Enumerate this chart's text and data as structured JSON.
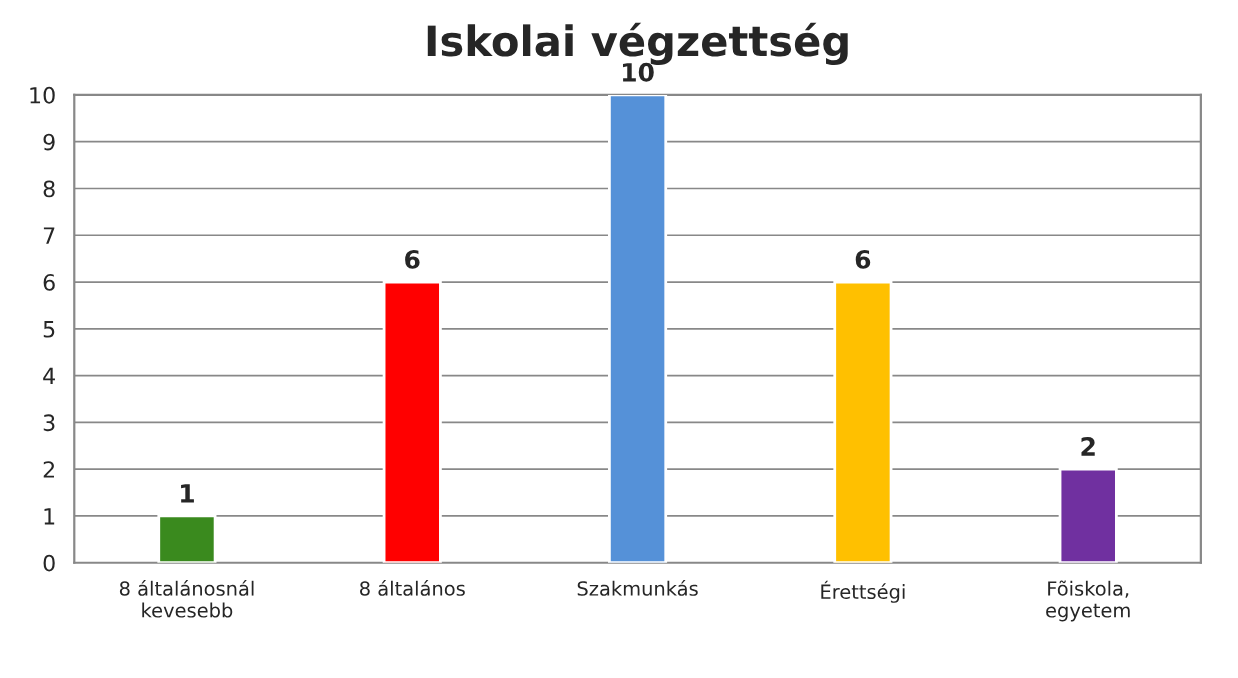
{
  "chart_data": {
    "type": "bar",
    "title": "Iskolai végzettség",
    "categories": [
      "8 általánosnál\nkevesebb",
      "8 általános",
      "Szakmunkás",
      "Érettségi",
      "Fõiskola,\negyetem"
    ],
    "values": [
      1,
      6,
      10,
      6,
      2
    ],
    "colors": [
      "#3a8a1e",
      "#ff0000",
      "#5591d8",
      "#ffc000",
      "#7030a0"
    ],
    "ylim": [
      0,
      10
    ],
    "yticks": [
      0,
      1,
      2,
      3,
      4,
      5,
      6,
      7,
      8,
      9,
      10
    ],
    "grid": "y",
    "data_labels": true,
    "legend": false
  }
}
